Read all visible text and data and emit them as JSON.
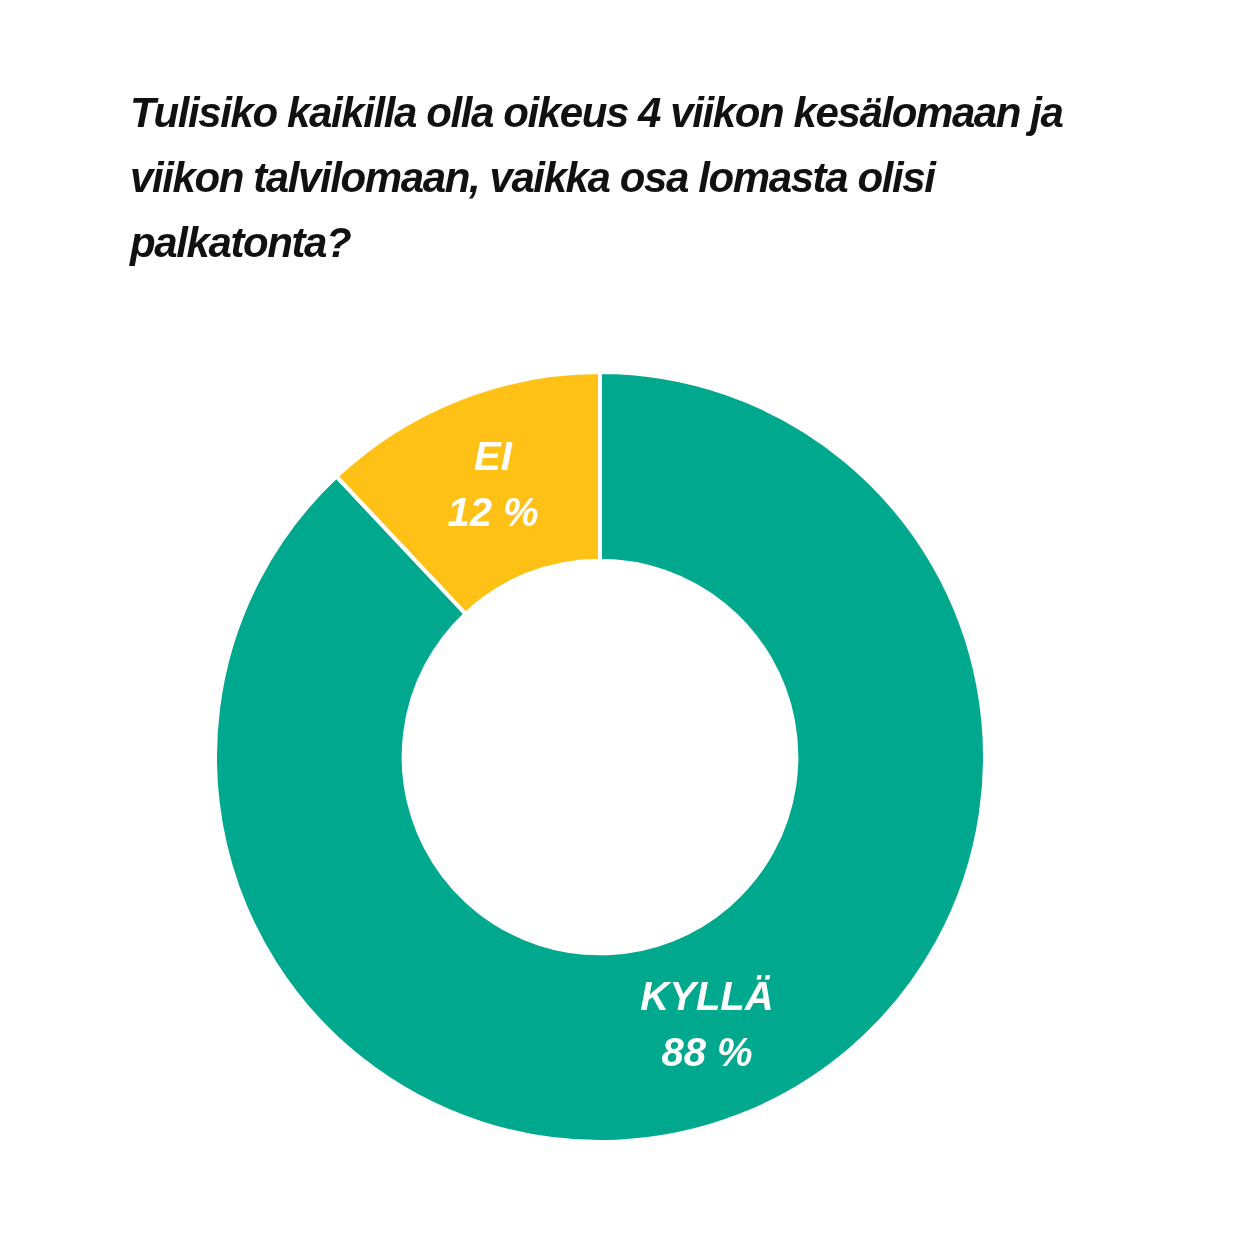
{
  "chart_data": {
    "type": "donut",
    "title": "Tulisiko kaikilla olla oikeus 4 viikon kesälomaan ja viikon talvilomaan, vaikka osa lomasta olisi palkatonta?",
    "categories": [
      "KYLLÄ",
      "EI"
    ],
    "values": [
      88,
      12
    ],
    "colors": [
      "#00a88e",
      "#ffc116"
    ],
    "value_labels": [
      "88 %",
      "12 %"
    ]
  }
}
